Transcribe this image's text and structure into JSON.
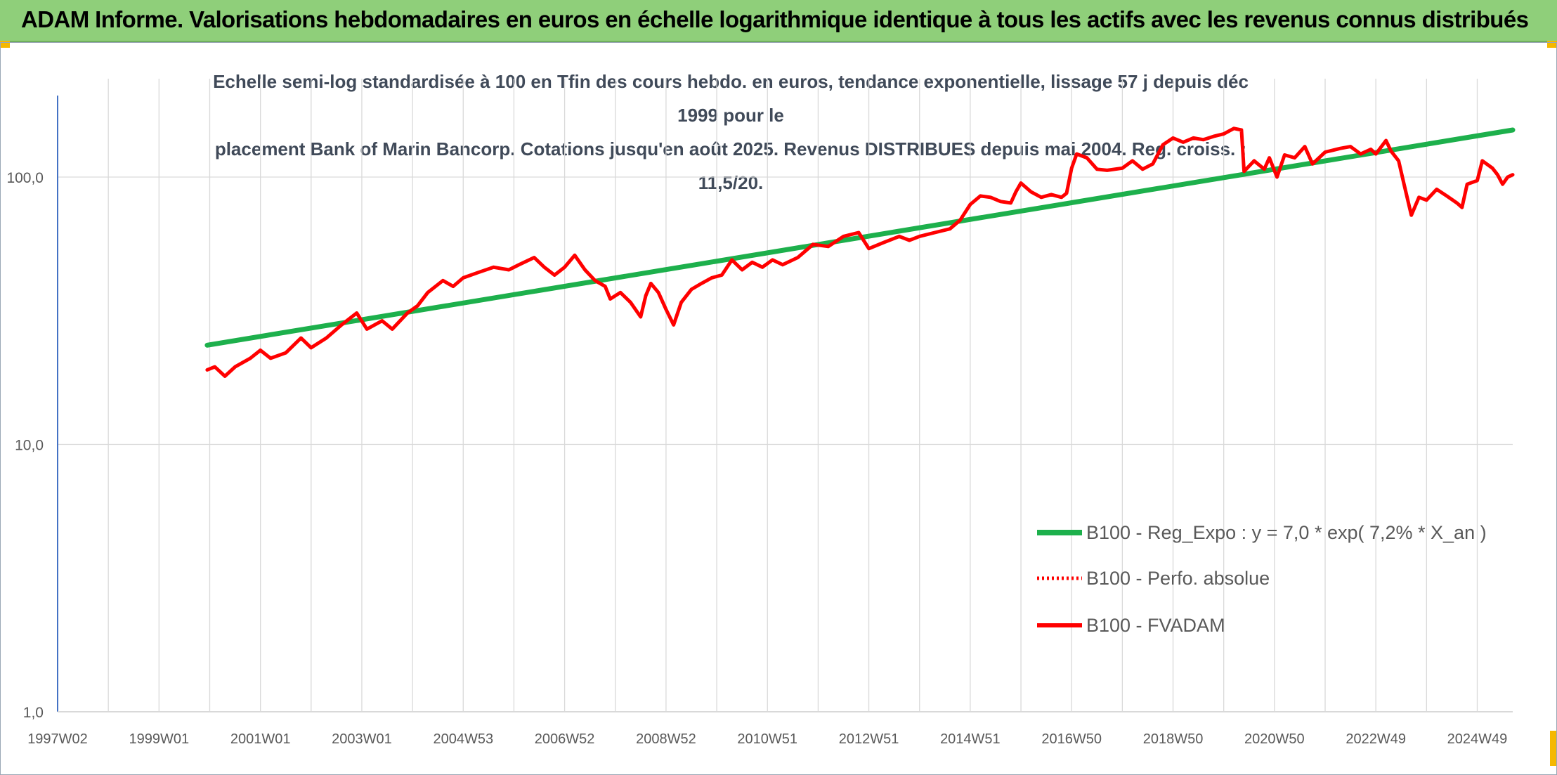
{
  "banner": {
    "title": "ADAM Informe. Valorisations hebdomadaires en euros en échelle logarithmique identique à tous les actifs avec les revenus connus distribués"
  },
  "colors": {
    "banner_bg": "#8fcf7a",
    "corner_accent": "#f5b800",
    "trend": "#1db04c",
    "fvadam": "#ff0000",
    "perfo": "#ff0000",
    "grid": "#d9d9d9",
    "axis": "#4472c4"
  },
  "chart_data": {
    "type": "line",
    "title_line1": "Echelle semi-log standardisée à 100 en Tfin des cours hebdo. en euros, tendance exponentielle, lissage 57 j depuis déc 1999 pour le",
    "title_line2": "placement Bank of Marin Bancorp. Cotations jusqu'en août 2025. Revenus DISTRIBUES depuis mai 2004. Reg. croiss. : 11,5/20.",
    "y_scale": "log",
    "ylim": [
      1,
      180
    ],
    "y_ticks": [
      {
        "value": 1,
        "label": "1,0"
      },
      {
        "value": 10,
        "label": "10,0"
      },
      {
        "value": 100,
        "label": "100,0"
      }
    ],
    "x_ticks": [
      {
        "t": 1997.0,
        "label": "1997W02"
      },
      {
        "t": 1999.0,
        "label": "1999W01"
      },
      {
        "t": 2001.0,
        "label": "2001W01"
      },
      {
        "t": 2003.0,
        "label": "2003W01"
      },
      {
        "t": 2005.0,
        "label": "2004W53"
      },
      {
        "t": 2007.0,
        "label": "2006W52"
      },
      {
        "t": 2009.0,
        "label": "2008W52"
      },
      {
        "t": 2011.0,
        "label": "2010W51"
      },
      {
        "t": 2013.0,
        "label": "2012W51"
      },
      {
        "t": 2015.0,
        "label": "2014W51"
      },
      {
        "t": 2017.0,
        "label": "2016W50"
      },
      {
        "t": 2019.0,
        "label": "2018W50"
      },
      {
        "t": 2021.0,
        "label": "2020W50"
      },
      {
        "t": 2023.0,
        "label": "2022W49"
      },
      {
        "t": 2025.0,
        "label": "2024W49"
      }
    ],
    "x_minor_step": 1,
    "xlim": [
      1997.0,
      2025.7
    ],
    "grid": true,
    "legend_position": "bottom-right",
    "series": [
      {
        "name": "B100 - Reg_Expo : y = 7,0 * exp( 7,2% *  X_an )",
        "key": "trend",
        "style": "solid-green",
        "points": [
          [
            1999.95,
            23.5
          ],
          [
            2025.7,
            150
          ]
        ]
      },
      {
        "name": "B100 - Perfo. absolue",
        "key": "perfo",
        "style": "dotted-red",
        "points": []
      },
      {
        "name": "B100 - FVADAM",
        "key": "fvadam",
        "style": "solid-red",
        "points": [
          [
            1999.95,
            19
          ],
          [
            2000.1,
            19.5
          ],
          [
            2000.3,
            18
          ],
          [
            2000.5,
            19.5
          ],
          [
            2000.8,
            21
          ],
          [
            2001.0,
            22.5
          ],
          [
            2001.2,
            21
          ],
          [
            2001.5,
            22
          ],
          [
            2001.8,
            25
          ],
          [
            2002.0,
            23
          ],
          [
            2002.3,
            25
          ],
          [
            2002.6,
            28
          ],
          [
            2002.9,
            31
          ],
          [
            2003.1,
            27
          ],
          [
            2003.4,
            29
          ],
          [
            2003.6,
            27
          ],
          [
            2003.9,
            31
          ],
          [
            2004.1,
            33
          ],
          [
            2004.3,
            37
          ],
          [
            2004.6,
            41
          ],
          [
            2004.8,
            39
          ],
          [
            2005.0,
            42
          ],
          [
            2005.3,
            44
          ],
          [
            2005.6,
            46
          ],
          [
            2005.9,
            45
          ],
          [
            2006.1,
            47
          ],
          [
            2006.4,
            50
          ],
          [
            2006.6,
            46
          ],
          [
            2006.8,
            43
          ],
          [
            2007.0,
            46
          ],
          [
            2007.2,
            51
          ],
          [
            2007.4,
            45
          ],
          [
            2007.6,
            41
          ],
          [
            2007.8,
            39
          ],
          [
            2007.9,
            35
          ],
          [
            2008.1,
            37
          ],
          [
            2008.3,
            34
          ],
          [
            2008.5,
            30
          ],
          [
            2008.6,
            36
          ],
          [
            2008.7,
            40
          ],
          [
            2008.85,
            37
          ],
          [
            2009.0,
            32
          ],
          [
            2009.15,
            28
          ],
          [
            2009.3,
            34
          ],
          [
            2009.5,
            38
          ],
          [
            2009.7,
            40
          ],
          [
            2009.9,
            42
          ],
          [
            2010.1,
            43
          ],
          [
            2010.3,
            49
          ],
          [
            2010.5,
            45
          ],
          [
            2010.7,
            48
          ],
          [
            2010.9,
            46
          ],
          [
            2011.1,
            49
          ],
          [
            2011.3,
            47
          ],
          [
            2011.6,
            50
          ],
          [
            2011.9,
            56
          ],
          [
            2012.2,
            55
          ],
          [
            2012.5,
            60
          ],
          [
            2012.8,
            62
          ],
          [
            2013.0,
            54
          ],
          [
            2013.3,
            57
          ],
          [
            2013.6,
            60
          ],
          [
            2013.8,
            58
          ],
          [
            2014.0,
            60
          ],
          [
            2014.3,
            62
          ],
          [
            2014.6,
            64
          ],
          [
            2014.8,
            69
          ],
          [
            2015.0,
            79
          ],
          [
            2015.2,
            85
          ],
          [
            2015.4,
            84
          ],
          [
            2015.6,
            81
          ],
          [
            2015.8,
            80
          ],
          [
            2015.9,
            88
          ],
          [
            2016.0,
            95
          ],
          [
            2016.2,
            88
          ],
          [
            2016.4,
            84
          ],
          [
            2016.6,
            86
          ],
          [
            2016.8,
            84
          ],
          [
            2016.9,
            87
          ],
          [
            2017.0,
            108
          ],
          [
            2017.1,
            122
          ],
          [
            2017.3,
            118
          ],
          [
            2017.5,
            107
          ],
          [
            2017.7,
            106
          ],
          [
            2018.0,
            108
          ],
          [
            2018.2,
            115
          ],
          [
            2018.4,
            107
          ],
          [
            2018.6,
            112
          ],
          [
            2018.8,
            132
          ],
          [
            2019.0,
            140
          ],
          [
            2019.2,
            135
          ],
          [
            2019.4,
            140
          ],
          [
            2019.6,
            138
          ],
          [
            2019.8,
            142
          ],
          [
            2020.0,
            145
          ],
          [
            2020.2,
            152
          ],
          [
            2020.35,
            150
          ],
          [
            2020.4,
            105
          ],
          [
            2020.6,
            115
          ],
          [
            2020.8,
            107
          ],
          [
            2020.9,
            118
          ],
          [
            2021.05,
            100
          ],
          [
            2021.2,
            121
          ],
          [
            2021.4,
            118
          ],
          [
            2021.6,
            130
          ],
          [
            2021.75,
            112
          ],
          [
            2022.0,
            124
          ],
          [
            2022.3,
            128
          ],
          [
            2022.5,
            130
          ],
          [
            2022.7,
            122
          ],
          [
            2022.9,
            127
          ],
          [
            2023.0,
            122
          ],
          [
            2023.2,
            137
          ],
          [
            2023.3,
            125
          ],
          [
            2023.45,
            115
          ],
          [
            2023.55,
            95
          ],
          [
            2023.7,
            72
          ],
          [
            2023.85,
            84
          ],
          [
            2024.0,
            82
          ],
          [
            2024.2,
            90
          ],
          [
            2024.4,
            85
          ],
          [
            2024.6,
            80
          ],
          [
            2024.7,
            77
          ],
          [
            2024.8,
            94
          ],
          [
            2025.0,
            97
          ],
          [
            2025.1,
            115
          ],
          [
            2025.3,
            108
          ],
          [
            2025.4,
            102
          ],
          [
            2025.5,
            94
          ],
          [
            2025.6,
            100
          ],
          [
            2025.7,
            102
          ]
        ]
      }
    ]
  }
}
